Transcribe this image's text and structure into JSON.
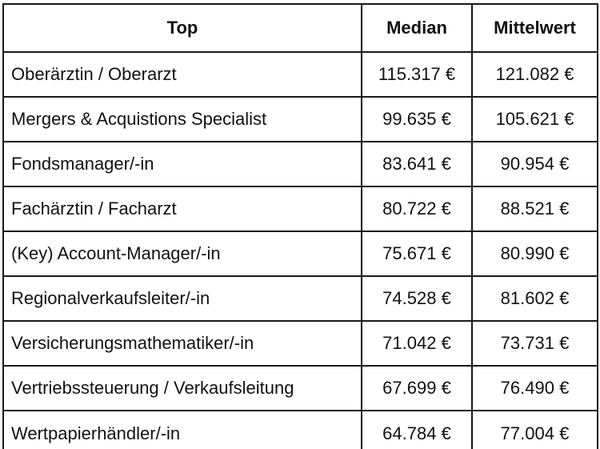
{
  "table": {
    "headers": {
      "job": "Top",
      "median": "Median",
      "mean": "Mittelwert"
    },
    "rows": [
      {
        "job": "Oberärztin / Oberarzt",
        "median": "115.317 €",
        "mean": "121.082 €"
      },
      {
        "job": "Mergers & Acquistions Specialist",
        "median": "99.635 €",
        "mean": "105.621 €"
      },
      {
        "job": "Fondsmanager/-in",
        "median": "83.641 €",
        "mean": "90.954 €"
      },
      {
        "job": "Fachärztin / Facharzt",
        "median": "80.722 €",
        "mean": "88.521 €"
      },
      {
        "job": "(Key) Account-Manager/-in",
        "median": "75.671 €",
        "mean": "80.990 €"
      },
      {
        "job": "Regionalverkaufsleiter/-in",
        "median": "74.528 €",
        "mean": "81.602 €"
      },
      {
        "job": "Versicherungsmathematiker/-in",
        "median": "71.042 €",
        "mean": "73.731 €"
      },
      {
        "job": "Vertriebssteuerung / Verkaufsleitung",
        "median": "67.699 €",
        "mean": "76.490 €"
      },
      {
        "job": "Wertpapierhändler/-in",
        "median": "64.784 €",
        "mean": "77.004 €"
      }
    ]
  }
}
